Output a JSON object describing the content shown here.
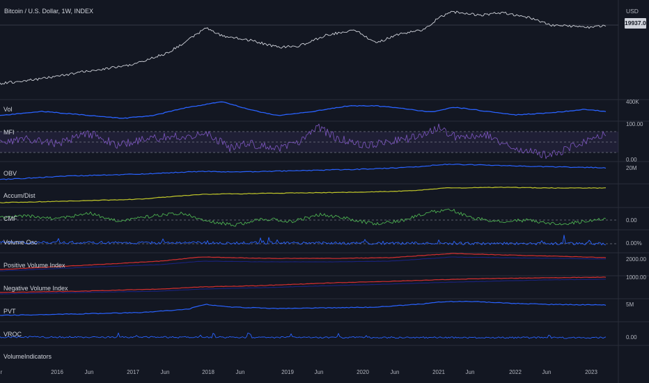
{
  "header": {
    "title": "Bitcoin / U.S. Dollar, 1W, INDEX",
    "currency": "USD",
    "last_price_tag": "19937.06"
  },
  "x_axis": {
    "ticks": [
      "2016",
      "Jun",
      "2017",
      "Jun",
      "2018",
      "Jun",
      "2019",
      "Jun",
      "2020",
      "Jun",
      "2021",
      "Jun",
      "2022",
      "Jun",
      "2023"
    ],
    "left_edge_label": "r"
  },
  "panes": [
    {
      "label": "",
      "scale_label": ""
    },
    {
      "label": "Vol",
      "scale_label": "400K"
    },
    {
      "label": "MFI",
      "scale_label": "100.00",
      "scale_label_2": "0.00"
    },
    {
      "label": "OBV",
      "scale_label": "20M"
    },
    {
      "label": "Accum/Dist",
      "scale_label": ""
    },
    {
      "label": "CMF",
      "scale_label": "0.00"
    },
    {
      "label": "Volume Osc",
      "scale_label": "0.00%"
    },
    {
      "label": "Positive Volume Index",
      "scale_label": "2000.00"
    },
    {
      "label": "Negative Volume Index",
      "scale_label": "1000.00"
    },
    {
      "label": "PVT",
      "scale_label": "5M"
    },
    {
      "label": "VROC",
      "scale_label": "0.00"
    },
    {
      "label": "VolumeIndicators",
      "scale_label": ""
    }
  ],
  "colors": {
    "background": "#131722",
    "price": "#d1d4dc",
    "blue": "#2962ff",
    "purple": "#7e57c2",
    "yellow": "#c0c62a",
    "green": "#4caf50",
    "red": "#d32f2f",
    "navy": "#1a237e"
  },
  "chart_data": {
    "type": "line",
    "title": "Bitcoin / U.S. Dollar, 1W, INDEX",
    "x_ticks": [
      "2016",
      "Jun",
      "2017",
      "Jun",
      "2018",
      "Jun",
      "2019",
      "Jun",
      "2020",
      "Jun",
      "2021",
      "Jun",
      "2022",
      "Jun",
      "2023"
    ],
    "last_value": 19937.06,
    "y_unit": "USD",
    "scales": {
      "Vol": "400K",
      "MFI": [
        "0.00",
        "100.00"
      ],
      "OBV": "20M",
      "CMF": "0.00",
      "Volume Osc": "0.00%",
      "Positive Volume Index": "2000.00",
      "Negative Volume Index": "1000.00",
      "PVT": "5M",
      "VROC": "0.00"
    },
    "series": [
      {
        "name": "Bitcoin / U.S. Dollar, 1W, INDEX"
      },
      {
        "name": "Vol"
      },
      {
        "name": "MFI"
      },
      {
        "name": "OBV"
      },
      {
        "name": "Accum/Dist"
      },
      {
        "name": "CMF"
      },
      {
        "name": "Volume Osc"
      },
      {
        "name": "Positive Volume Index"
      },
      {
        "name": "Negative Volume Index"
      },
      {
        "name": "PVT"
      },
      {
        "name": "VROC"
      }
    ]
  }
}
